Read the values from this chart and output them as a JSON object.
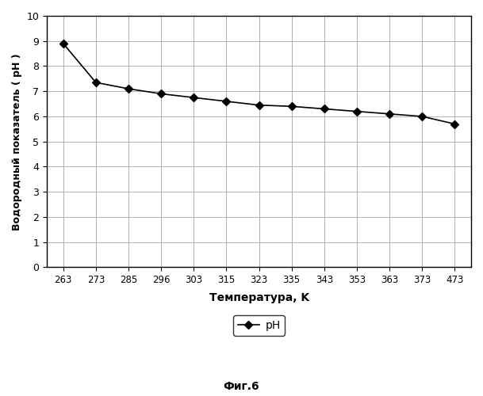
{
  "x_labels": [
    "263",
    "273",
    "285",
    "296",
    "303",
    "315",
    "323",
    "335",
    "343",
    "353",
    "363",
    "373",
    "473"
  ],
  "y": [
    8.9,
    7.35,
    7.1,
    6.9,
    6.75,
    6.6,
    6.45,
    6.4,
    6.3,
    6.2,
    6.1,
    6.0,
    5.7
  ],
  "y_ticks": [
    0,
    1,
    2,
    3,
    4,
    5,
    6,
    7,
    8,
    9,
    10
  ],
  "xlabel": "Температура, K",
  "ylabel": "Водородный показатель ( рH )",
  "legend_label": "pH",
  "caption": "Фиг.6",
  "ylim": [
    0,
    10
  ],
  "line_color": "#000000",
  "marker": "D",
  "marker_size": 5,
  "marker_facecolor": "#000000",
  "grid_color": "#b0b0b0",
  "background_color": "#ffffff",
  "fig_width": 6.09,
  "fig_height": 5.0,
  "dpi": 100
}
